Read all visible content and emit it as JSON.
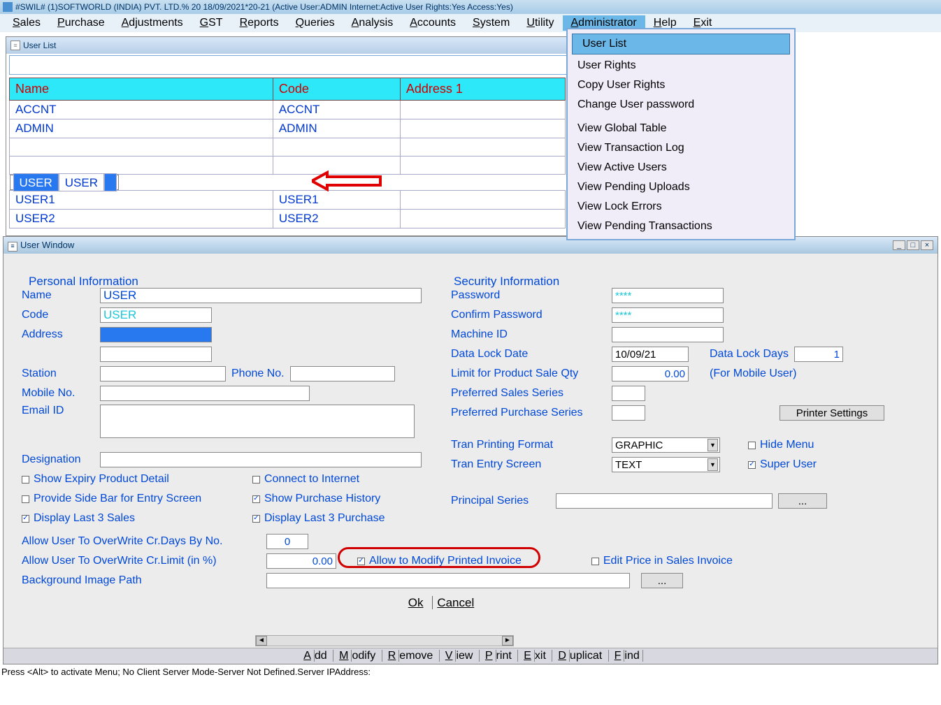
{
  "titlebar": "#SWIL#      (1)SOFTWORLD (INDIA) PVT. LTD.% 20     18/09/2021*20-21     (Active User:ADMIN Internet:Active  User Rights:Yes Access:Yes)",
  "menu": [
    "Sales",
    "Purchase",
    "Adjustments",
    "GST",
    "Reports",
    "Queries",
    "Analysis",
    "Accounts",
    "System",
    "Utility",
    "Administrator",
    "Help",
    "Exit"
  ],
  "menu_active_index": 10,
  "dropdown": {
    "items": [
      {
        "label": "User List",
        "hl": true
      },
      {
        "label": "User Rights"
      },
      {
        "label": "Copy User Rights"
      },
      {
        "label": "Change User password"
      },
      {
        "sep": true
      },
      {
        "label": "View Global Table"
      },
      {
        "label": "View Transaction Log"
      },
      {
        "label": "View Active Users"
      },
      {
        "label": "View Pending Uploads"
      },
      {
        "label": "View Lock Errors"
      },
      {
        "label": "View Pending Transactions"
      }
    ]
  },
  "userlist": {
    "title": "User List",
    "cols": [
      "Name",
      "Code",
      "Address 1"
    ],
    "rows": [
      {
        "c": [
          "ACCNT",
          "ACCNT",
          ""
        ]
      },
      {
        "c": [
          "ADMIN",
          "ADMIN",
          ""
        ]
      },
      {
        "c": [
          "",
          "",
          ""
        ],
        "empty": true
      },
      {
        "c": [
          "",
          "",
          ""
        ],
        "empty": true
      },
      {
        "c": [
          "USER",
          "USER",
          ""
        ],
        "sel": true
      },
      {
        "c": [
          "USER1",
          "USER1",
          ""
        ]
      },
      {
        "c": [
          "USER2",
          "USER2",
          ""
        ]
      }
    ]
  },
  "userwin": {
    "title": "User Window",
    "personal_label": "Personal Information",
    "security_label": "Security Information",
    "name_label": "Name",
    "name_val": "USER",
    "code_label": "Code",
    "code_val": "USER",
    "address_label": "Address",
    "station_label": "Station",
    "phone_label": "Phone No.",
    "mobile_label": "Mobile No.",
    "email_label": "Email ID",
    "designation_label": "Designation",
    "password_label": "Password",
    "password_val": "****",
    "confirm_label": "Confirm Password",
    "confirm_val": "****",
    "machine_label": "Machine ID",
    "datalock_label": "Data Lock Date",
    "datalock_val": "10/09/21",
    "datalockdays_label": "Data Lock Days",
    "datalockdays_val": "1",
    "limit_label": "Limit for Product Sale Qty",
    "limit_val": "0.00",
    "formobile": "(For Mobile User)",
    "pss_label": "Preferred Sales Series",
    "pps_label": "Preferred Purchase Series",
    "printer_btn": "Printer Settings",
    "tpf_label": "Tran Printing Format",
    "tpf_val": "GRAPHIC",
    "tes_label": "Tran Entry Screen",
    "tes_val": "TEXT",
    "hidemenu": "Hide Menu",
    "superuser": "Super User",
    "principal_label": "Principal Series",
    "chk_expiry": "Show Expiry Product Detail",
    "chk_connect": "Connect to Internet",
    "chk_sidebar": "Provide Side Bar for Entry Screen",
    "chk_purchhist": "Show Purchase History",
    "chk_last3s": "Display Last 3 Sales",
    "chk_last3p": "Display Last 3 Purchase",
    "overwrite_days": "Allow User To OverWrite Cr.Days By No.",
    "overwrite_days_val": "0",
    "overwrite_limit": "Allow User To OverWrite Cr.Limit (in %)",
    "overwrite_limit_val": "0.00",
    "allow_modify": "Allow to Modify Printed Invoice",
    "edit_price": "Edit Price in Sales Invoice",
    "bgpath": "Background Image Path",
    "ok": "Ok",
    "cancel": "Cancel",
    "toolbar": [
      "Add",
      "Modify",
      "Remove",
      "View",
      "Print",
      "Exit",
      "Duplicat",
      "Find"
    ]
  },
  "status": "Press <Alt> to activate Menu; No Client Server Mode-Server Not Defined.Server IPAddress:",
  "colors": {
    "accent": "#2ce8f8",
    "header_text": "#d00000",
    "link": "#0048d8"
  }
}
